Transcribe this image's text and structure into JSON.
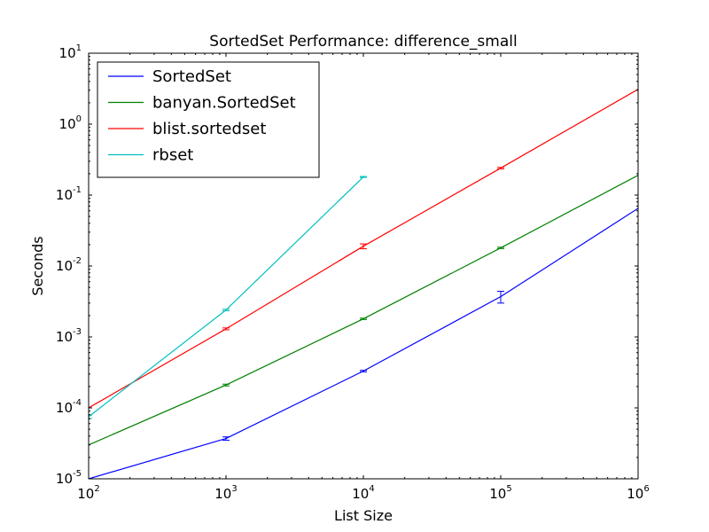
{
  "chart_data": {
    "type": "line",
    "title": "SortedSet Performance: difference_small",
    "xlabel": "List Size",
    "ylabel": "Seconds",
    "xscale": "log",
    "yscale": "log",
    "xlim": [
      100,
      1000000
    ],
    "ylim": [
      1e-05,
      10
    ],
    "grid": false,
    "legend_position": "top-left",
    "xticks": [
      {
        "base": "10",
        "exp": "2",
        "value": 100
      },
      {
        "base": "10",
        "exp": "3",
        "value": 1000
      },
      {
        "base": "10",
        "exp": "4",
        "value": 10000
      },
      {
        "base": "10",
        "exp": "5",
        "value": 100000
      },
      {
        "base": "10",
        "exp": "6",
        "value": 1000000
      }
    ],
    "yticks": [
      {
        "base": "10",
        "exp": "-5",
        "value": 1e-05
      },
      {
        "base": "10",
        "exp": "-4",
        "value": 0.0001
      },
      {
        "base": "10",
        "exp": "-3",
        "value": 0.001
      },
      {
        "base": "10",
        "exp": "-2",
        "value": 0.01
      },
      {
        "base": "10",
        "exp": "-1",
        "value": 0.1
      },
      {
        "base": "10",
        "exp": "0",
        "value": 1
      },
      {
        "base": "10",
        "exp": "1",
        "value": 10
      }
    ],
    "series": [
      {
        "name": "SortedSet",
        "color": "#0000ff",
        "x": [
          100,
          1000,
          10000,
          100000,
          1000000
        ],
        "y": [
          1e-05,
          3.7e-05,
          0.00033,
          0.0037,
          0.065
        ],
        "err": [
          0,
          2e-06,
          8e-06,
          0.0007,
          0
        ]
      },
      {
        "name": "banyan.SortedSet",
        "color": "#008000",
        "x": [
          100,
          1000,
          10000,
          100000,
          1000000
        ],
        "y": [
          3e-05,
          0.00021,
          0.0018,
          0.018,
          0.19
        ],
        "err": [
          0,
          6e-06,
          4e-05,
          0.0004,
          0
        ]
      },
      {
        "name": "blist.sortedset",
        "color": "#ff0000",
        "x": [
          100,
          1000,
          10000,
          100000,
          1000000
        ],
        "y": [
          0.0001,
          0.0013,
          0.019,
          0.24,
          3.1
        ],
        "err": [
          0,
          4e-05,
          0.0015,
          0.006,
          0
        ]
      },
      {
        "name": "rbset",
        "color": "#00bfbf",
        "x": [
          100,
          1000,
          10000
        ],
        "y": [
          7.5e-05,
          0.0024,
          0.18
        ],
        "err": [
          4e-06,
          6e-05,
          0.003
        ]
      }
    ]
  }
}
